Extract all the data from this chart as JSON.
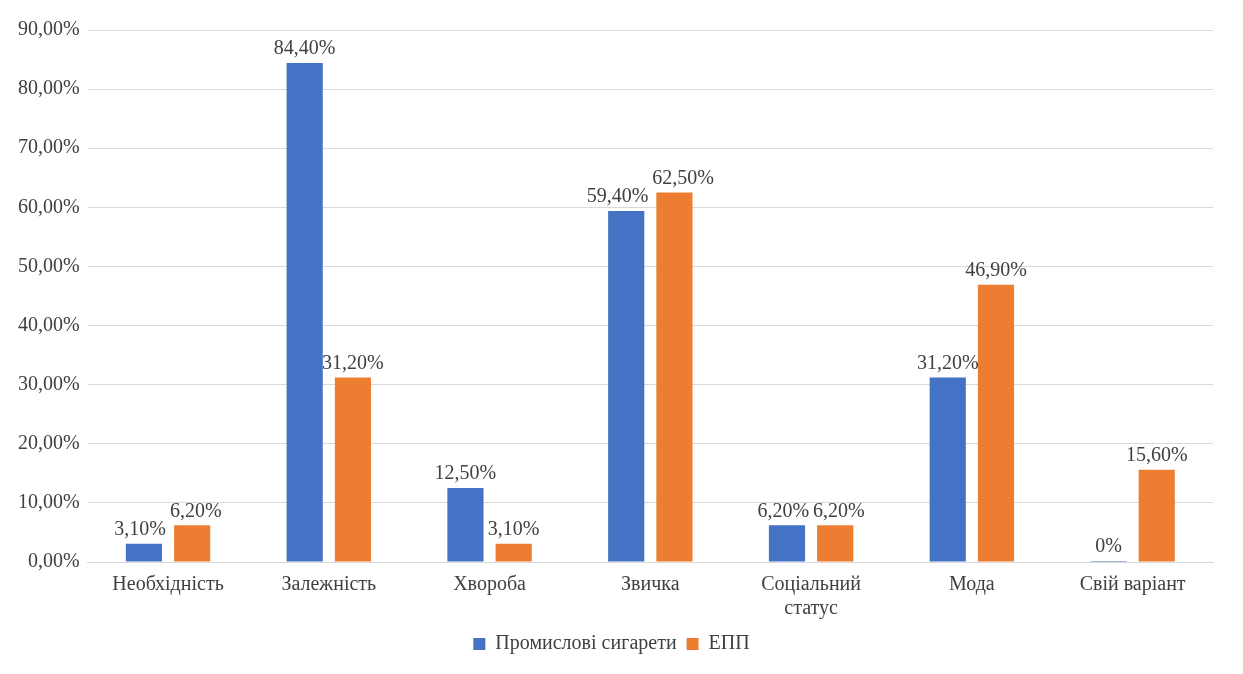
{
  "chart_data": {
    "type": "bar",
    "categories": [
      "Необхідність",
      "Залежність",
      "Хвороба",
      "Звичка",
      "Соціальний статус",
      "Мода",
      "Свій варіант"
    ],
    "series": [
      {
        "name": "Промислові сигарети",
        "color": "#4472c4",
        "values": [
          3.1,
          84.4,
          12.5,
          59.4,
          6.2,
          31.2,
          0
        ],
        "value_labels": [
          "3,10%",
          "84,40%",
          "12,50%",
          "59,40%",
          "6,20%",
          "31,20%",
          "0%"
        ]
      },
      {
        "name": "ЕПП",
        "color": "#ed7d31",
        "values": [
          6.2,
          31.2,
          3.1,
          62.5,
          6.2,
          46.9,
          15.6
        ],
        "value_labels": [
          "6,20%",
          "31,20%",
          "3,10%",
          "62,50%",
          "6,20%",
          "46,90%",
          "15,60%"
        ]
      }
    ],
    "ylim": [
      0,
      90
    ],
    "yticks": [
      {
        "value": 0,
        "label": "0,00%"
      },
      {
        "value": 10,
        "label": "10,00%"
      },
      {
        "value": 20,
        "label": "20,00%"
      },
      {
        "value": 30,
        "label": "30,00%"
      },
      {
        "value": 40,
        "label": "40,00%"
      },
      {
        "value": 50,
        "label": "50,00%"
      },
      {
        "value": 60,
        "label": "60,00%"
      },
      {
        "value": 70,
        "label": "70,00%"
      },
      {
        "value": 80,
        "label": "80,00%"
      },
      {
        "value": 90,
        "label": "90,00%"
      }
    ],
    "grid": "y",
    "legend": "bottom"
  }
}
